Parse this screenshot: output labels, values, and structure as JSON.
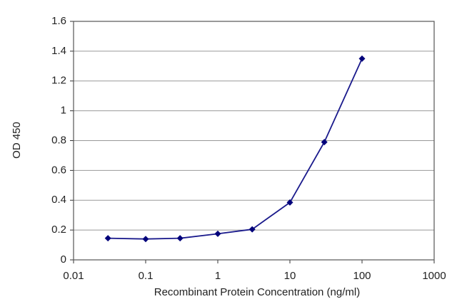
{
  "chart_data": {
    "type": "line",
    "x_label": "Recombinant Protein Concentration (ng/ml)",
    "y_label": "OD 450",
    "x": [
      0.03,
      0.1,
      0.3,
      1,
      3,
      10,
      30,
      100
    ],
    "values": [
      0.145,
      0.14,
      0.145,
      0.175,
      0.205,
      0.385,
      0.79,
      1.35
    ],
    "color": "#1a1a8c",
    "marker_color": "#00007a",
    "xscale": "log",
    "xlim": [
      0.01,
      1000
    ],
    "xticks": [
      0.01,
      0.1,
      1,
      10,
      100,
      1000
    ],
    "ylim": [
      0,
      1.6
    ],
    "yticks": [
      0,
      0.2,
      0.4,
      0.6,
      0.8,
      1,
      1.2,
      1.4,
      1.6
    ],
    "grid": true
  }
}
